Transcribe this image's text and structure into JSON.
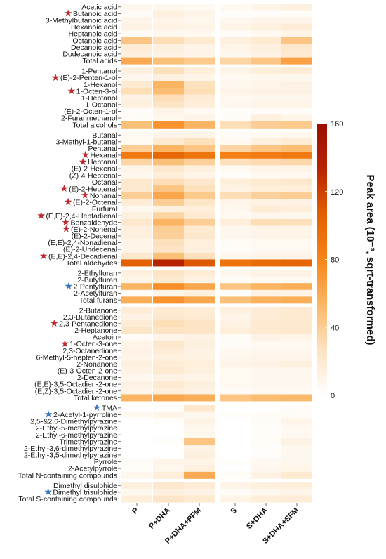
{
  "chart_data": {
    "type": "heatmap",
    "columns": [
      "P",
      "P+DHA",
      "P+DHA+PFM",
      "S",
      "S+DHA",
      "S+DHA+SFM"
    ],
    "colorbar": {
      "label": "Peak area (10⁻³, sqrt-transformed)",
      "ticks": [
        0,
        40,
        80,
        120,
        160
      ],
      "range": [
        0,
        160
      ],
      "colors": [
        "#ffffff",
        "#fde3c2",
        "#fbb766",
        "#f78418",
        "#e25f00",
        "#b82300",
        "#9a0e00"
      ]
    },
    "star_colors": {
      "red": "#c0272d",
      "blue": "#3a77b8"
    },
    "groups": [
      {
        "rows": [
          {
            "label": "Acetic acid",
            "values": [
              8,
              8,
              6,
              6,
              10,
              14
            ]
          },
          {
            "label": "Butanoic acid",
            "star": "red",
            "values": [
              4,
              14,
              10,
              2,
              2,
              4
            ]
          },
          {
            "label": "3-Methylbutanoic acid",
            "values": [
              10,
              10,
              8,
              8,
              10,
              10
            ]
          },
          {
            "label": "Hexanoic acid",
            "values": [
              12,
              12,
              10,
              10,
              14,
              18
            ]
          },
          {
            "label": "Heptanoic acid",
            "values": [
              4,
              8,
              6,
              3,
              6,
              10
            ]
          },
          {
            "label": "Octanoic acid",
            "values": [
              45,
              30,
              20,
              14,
              20,
              45
            ]
          },
          {
            "label": "Decanoic acid",
            "values": [
              18,
              14,
              10,
              10,
              14,
              22
            ]
          },
          {
            "label": "Dodecanoic acid",
            "values": [
              14,
              12,
              10,
              8,
              12,
              20
            ]
          },
          {
            "label": "Total acids",
            "values": [
              60,
              48,
              42,
              35,
              45,
              65
            ]
          }
        ]
      },
      {
        "rows": [
          {
            "label": "1-Pentanol",
            "values": [
              14,
              28,
              16,
              10,
              16,
              18
            ]
          },
          {
            "label": "(E)-2-Penten-1-ol",
            "star": "red",
            "values": [
              8,
              14,
              10,
              6,
              8,
              8
            ]
          },
          {
            "label": "1-Hexanol",
            "values": [
              20,
              55,
              28,
              8,
              10,
              12
            ]
          },
          {
            "label": "1-Octen-3-ol",
            "star": "red",
            "values": [
              30,
              50,
              30,
              10,
              12,
              12
            ]
          },
          {
            "label": "1-Heptanol",
            "values": [
              12,
              30,
              18,
              6,
              8,
              8
            ]
          },
          {
            "label": "1-Octanol",
            "values": [
              14,
              26,
              16,
              8,
              10,
              10
            ]
          },
          {
            "label": "(E)-2-Octen-1-ol",
            "values": [
              4,
              10,
              6,
              2,
              4,
              4
            ]
          },
          {
            "label": "2-Furanmethanol",
            "values": [
              4,
              8,
              10,
              4,
              14,
              10
            ]
          },
          {
            "label": "Total alcohols",
            "values": [
              48,
              72,
              55,
              30,
              40,
              42
            ]
          }
        ]
      },
      {
        "rows": [
          {
            "label": "Butanal",
            "values": [
              6,
              10,
              10,
              4,
              6,
              8
            ]
          },
          {
            "label": "3-Methyl-1-butanal",
            "values": [
              6,
              20,
              28,
              6,
              14,
              18
            ]
          },
          {
            "label": "Pentanal",
            "values": [
              40,
              55,
              45,
              35,
              45,
              50
            ]
          },
          {
            "label": "Hexanal",
            "star": "red",
            "values": [
              88,
              100,
              90,
              82,
              85,
              88
            ]
          },
          {
            "label": "Heptanal",
            "star": "red",
            "values": [
              35,
              48,
              38,
              28,
              32,
              34
            ]
          },
          {
            "label": "(E)-2-Hexenal",
            "values": [
              10,
              22,
              14,
              6,
              10,
              10
            ]
          },
          {
            "label": "(Z)-4-Heptenal",
            "values": [
              8,
              16,
              10,
              4,
              6,
              6
            ]
          },
          {
            "label": "Octanal",
            "values": [
              22,
              30,
              22,
              16,
              20,
              22
            ]
          },
          {
            "label": "(E)-2-Heptenal",
            "star": "red",
            "values": [
              22,
              45,
              28,
              12,
              16,
              16
            ]
          },
          {
            "label": "Nonanal",
            "star": "red",
            "values": [
              40,
              62,
              42,
              30,
              38,
              40
            ]
          },
          {
            "label": "(E)-2-Octenal",
            "star": "red",
            "values": [
              18,
              40,
              24,
              10,
              12,
              12
            ]
          },
          {
            "label": "Furfural",
            "values": [
              8,
              14,
              16,
              8,
              18,
              16
            ]
          },
          {
            "label": "(E,E)-2,4-Heptadienal",
            "star": "red",
            "values": [
              14,
              36,
              20,
              6,
              8,
              8
            ]
          },
          {
            "label": "Benzaldehyde",
            "star": "red",
            "values": [
              22,
              55,
              40,
              16,
              30,
              28
            ]
          },
          {
            "label": "(E)-2-Nonenal",
            "star": "red",
            "values": [
              14,
              40,
              20,
              8,
              10,
              10
            ]
          },
          {
            "label": "(E)-2-Decenal",
            "values": [
              14,
              38,
              22,
              8,
              10,
              10
            ]
          },
          {
            "label": "(E,E)-2,4-Nonadienal",
            "values": [
              10,
              28,
              16,
              4,
              6,
              6
            ]
          },
          {
            "label": "(E)-2-Undecenal",
            "values": [
              10,
              26,
              14,
              4,
              6,
              6
            ]
          },
          {
            "label": "(E,E)-2,4-Decadienal",
            "star": "red",
            "values": [
              22,
              48,
              28,
              8,
              10,
              10
            ]
          },
          {
            "label": "Total aldehydes",
            "values": [
              105,
              135,
              110,
              92,
              98,
              102
            ]
          }
        ]
      },
      {
        "rows": [
          {
            "label": "2-Ethylfuran",
            "values": [
              14,
              26,
              18,
              8,
              12,
              12
            ]
          },
          {
            "label": "2-Butylfuran",
            "values": [
              10,
              20,
              12,
              4,
              6,
              6
            ]
          },
          {
            "label": "2-Pentylfuran",
            "star": "blue",
            "values": [
              55,
              75,
              62,
              45,
              55,
              58
            ]
          },
          {
            "label": "2-Acetylfuran",
            "values": [
              4,
              10,
              14,
              2,
              12,
              10
            ]
          },
          {
            "label": "Total furans",
            "values": [
              58,
              72,
              62,
              48,
              56,
              58
            ]
          }
        ]
      },
      {
        "rows": [
          {
            "label": "2-Butanone",
            "values": [
              18,
              20,
              18,
              14,
              18,
              20
            ]
          },
          {
            "label": "2,3-Butanedione",
            "values": [
              12,
              22,
              20,
              10,
              18,
              20
            ]
          },
          {
            "label": "2,3-Pentanedione",
            "star": "red",
            "values": [
              18,
              30,
              26,
              12,
              20,
              22
            ]
          },
          {
            "label": "2-Heptanone",
            "values": [
              24,
              26,
              24,
              16,
              20,
              22
            ]
          },
          {
            "label": "Acetoin",
            "values": [
              4,
              10,
              12,
              4,
              12,
              10
            ]
          },
          {
            "label": "1-Octen-3-one",
            "star": "red",
            "values": [
              10,
              22,
              14,
              4,
              6,
              6
            ]
          },
          {
            "label": "2,3-Octanedione",
            "values": [
              12,
              18,
              12,
              6,
              8,
              8
            ]
          },
          {
            "label": "6-Methyl-5-hepten-2-one",
            "values": [
              10,
              14,
              12,
              8,
              10,
              10
            ]
          },
          {
            "label": "2-Nonanone",
            "values": [
              14,
              18,
              16,
              10,
              12,
              14
            ]
          },
          {
            "label": "(E)-3-Octen-2-one",
            "values": [
              12,
              20,
              14,
              6,
              8,
              8
            ]
          },
          {
            "label": "2-Decanone",
            "values": [
              8,
              12,
              10,
              6,
              8,
              8
            ]
          },
          {
            "label": "(E,E)-3,5-Octadien-2-one",
            "values": [
              12,
              20,
              14,
              6,
              8,
              8
            ]
          },
          {
            "label": "(E,Z)-3,5-Octadien-2-one",
            "values": [
              10,
              16,
              12,
              4,
              6,
              6
            ]
          },
          {
            "label": "Total ketones",
            "values": [
              55,
              62,
              58,
              45,
              50,
              52
            ]
          }
        ]
      },
      {
        "rows": [
          {
            "label": "TMA",
            "star": "blue",
            "values": [
              0,
              2,
              22,
              0,
              0,
              4
            ]
          },
          {
            "label": "2-Acetyl-1-pyrroline",
            "star": "blue",
            "values": [
              6,
              10,
              8,
              2,
              4,
              4
            ]
          },
          {
            "label": "2,5-&2,6-Dimethylpyrazine",
            "values": [
              0,
              2,
              12,
              0,
              4,
              10
            ]
          },
          {
            "label": "2-Ethyl-5-methylpyrazine",
            "values": [
              0,
              0,
              8,
              0,
              2,
              6
            ]
          },
          {
            "label": "2-Ethyl-6-methylpyrazine",
            "values": [
              0,
              0,
              8,
              0,
              2,
              6
            ]
          },
          {
            "label": "Trimethylpyrazine",
            "values": [
              0,
              2,
              45,
              0,
              4,
              12
            ]
          },
          {
            "label": "2-Ethyl-3,6-dimethylpyrazine",
            "values": [
              0,
              0,
              12,
              0,
              2,
              8
            ]
          },
          {
            "label": "2-Ethyl-3,5-dimethylpyrazine",
            "values": [
              0,
              0,
              14,
              0,
              2,
              8
            ]
          },
          {
            "label": "Pyrrole",
            "values": [
              4,
              10,
              10,
              2,
              6,
              8
            ]
          },
          {
            "label": "2-Acetylpyrrole",
            "values": [
              2,
              8,
              14,
              0,
              8,
              10
            ]
          },
          {
            "label": "Total N-containing compounds",
            "values": [
              8,
              16,
              60,
              4,
              12,
              20
            ]
          }
        ]
      },
      {
        "rows": [
          {
            "label": "Dimethyl disulphide",
            "values": [
              14,
              22,
              18,
              10,
              14,
              16
            ]
          },
          {
            "label": "Dimethyl trisulphide",
            "star": "blue",
            "values": [
              8,
              14,
              12,
              4,
              8,
              10
            ]
          },
          {
            "label": "Total S-containing compounds",
            "values": [
              16,
              24,
              20,
              10,
              16,
              18
            ]
          }
        ]
      }
    ]
  }
}
